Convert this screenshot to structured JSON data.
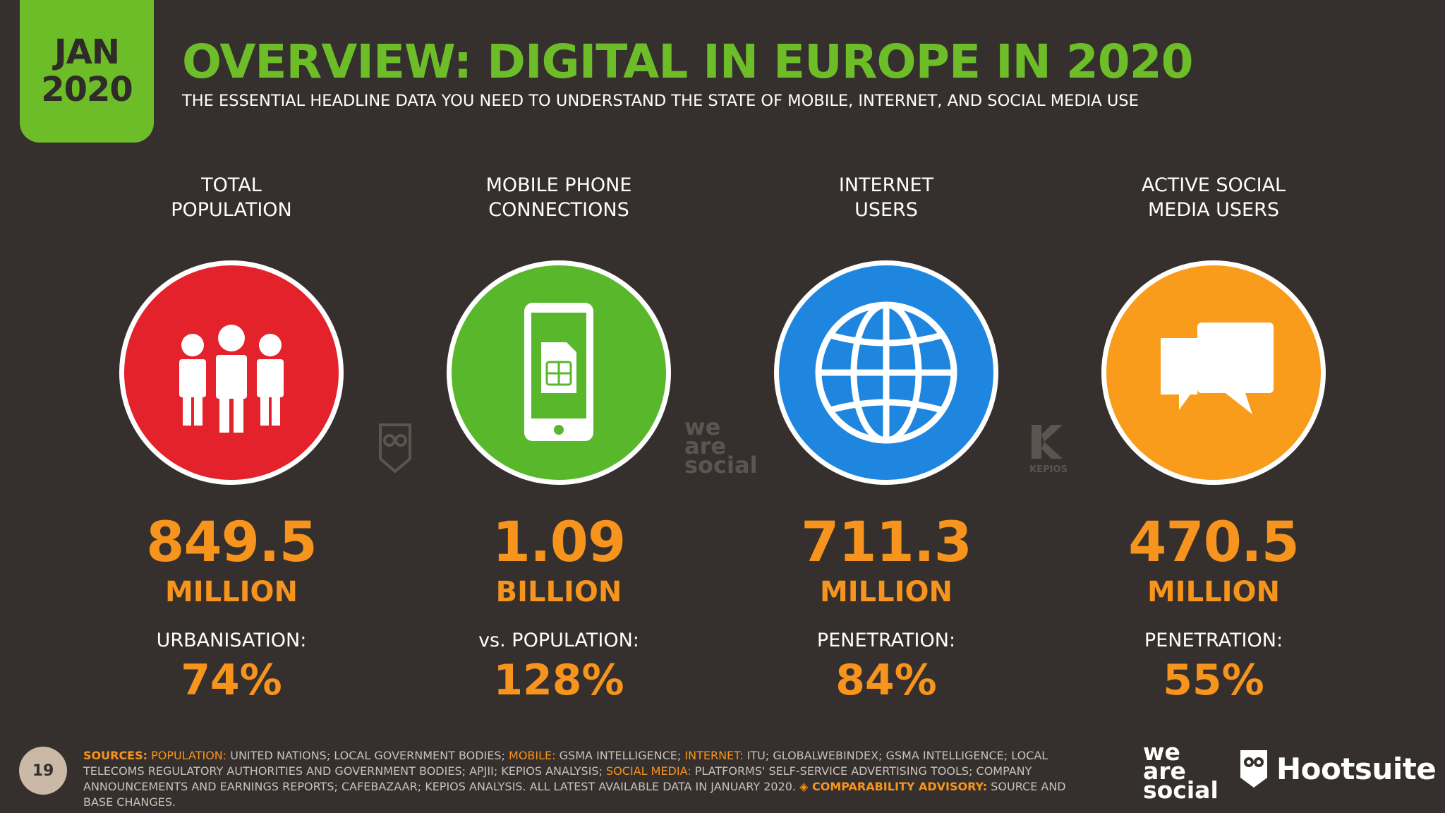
{
  "badge": {
    "month": "JAN",
    "year": "2020"
  },
  "header": {
    "title": "OVERVIEW: DIGITAL IN EUROPE IN 2020",
    "subtitle": "THE ESSENTIAL HEADLINE DATA YOU NEED TO UNDERSTAND THE STATE OF MOBILE, INTERNET, AND SOCIAL MEDIA USE"
  },
  "colors": {
    "background": "#35302d",
    "accent_green": "#6dbd29",
    "value_orange": "#f7941d",
    "population": "#e3222b",
    "mobile": "#58b72b",
    "internet": "#1f86e0",
    "social": "#f99c1c"
  },
  "stats": [
    {
      "label_1": "TOTAL",
      "label_2": "POPULATION",
      "icon": "people-icon",
      "value": "849.5",
      "unit": "MILLION",
      "sublabel": "URBANISATION:",
      "pct": "74%"
    },
    {
      "label_1": "MOBILE PHONE",
      "label_2": "CONNECTIONS",
      "icon": "mobile-phone-sim-icon",
      "value": "1.09",
      "unit": "BILLION",
      "sublabel": "vs. POPULATION:",
      "pct": "128%"
    },
    {
      "label_1": "INTERNET",
      "label_2": "USERS",
      "icon": "globe-icon",
      "value": "711.3",
      "unit": "MILLION",
      "sublabel": "PENETRATION:",
      "pct": "84%"
    },
    {
      "label_1": "ACTIVE SOCIAL",
      "label_2": "MEDIA USERS",
      "icon": "chat-bubbles-icon",
      "value": "470.5",
      "unit": "MILLION",
      "sublabel": "PENETRATION:",
      "pct": "55%"
    }
  ],
  "watermarks": {
    "was_1": "we",
    "was_2": "are",
    "was_3": "social",
    "kepios": "KEPIOS"
  },
  "footer": {
    "page": "19",
    "sources_label": "SOURCES:",
    "population_label": "POPULATION:",
    "population_text": "UNITED NATIONS; LOCAL GOVERNMENT BODIES;",
    "mobile_label": "MOBILE:",
    "mobile_text": "GSMA INTELLIGENCE;",
    "internet_label": "INTERNET:",
    "internet_text": "ITU; GLOBALWEBINDEX; GSMA INTELLIGENCE; LOCAL TELECOMS REGULATORY AUTHORITIES AND GOVERNMENT BODIES; APJII; KEPIOS ANALYSIS;",
    "social_label": "SOCIAL MEDIA:",
    "social_text": "PLATFORMS' SELF-SERVICE ADVERTISING TOOLS; COMPANY ANNOUNCEMENTS AND EARNINGS REPORTS; CAFEBAZAAR; KEPIOS ANALYSIS. ALL LATEST AVAILABLE DATA IN JANUARY 2020.",
    "advisory_label": "◈ COMPARABILITY ADVISORY:",
    "advisory_text": "SOURCE AND BASE CHANGES.",
    "logo_was_1": "we",
    "logo_was_2": "are",
    "logo_was_3": "social",
    "logo_hootsuite": "Hootsuite"
  }
}
